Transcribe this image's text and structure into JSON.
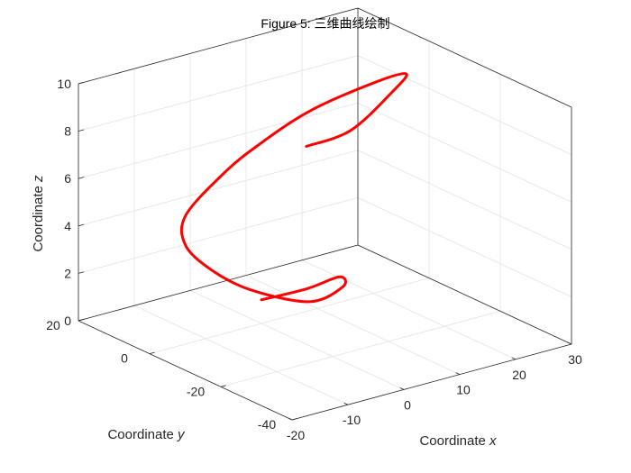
{
  "window": {
    "title": "Figure 5: 三维曲线绘制"
  },
  "chart_data": {
    "type": "line",
    "projection": "3d",
    "title": "Figure 5: 三维曲线绘制",
    "xlabel": "Coordinate x",
    "ylabel": "Coordinate y",
    "zlabel": "Coordinate z",
    "xlim": [
      -20,
      30
    ],
    "ylim": [
      -40,
      20
    ],
    "zlim": [
      0,
      10
    ],
    "xticks": [
      -20,
      -10,
      0,
      10,
      20,
      30
    ],
    "yticks": [
      -40,
      -20,
      0,
      20
    ],
    "zticks": [
      0,
      2,
      4,
      6,
      8,
      10
    ],
    "grid": true,
    "box": true,
    "line_color": "#ff0000",
    "series": [
      {
        "x": [
          0.0,
          5.0,
          7.5,
          4.9,
          -2.5,
          -13.8,
          -19.1,
          -20.0,
          -16.2,
          -6.1,
          2.1,
          11.5,
          21.9,
          25.8,
          21.0,
          11.5,
          3.2
        ],
        "y": [
          0.0,
          -5.0,
          -10.2,
          -15.2,
          -17.5,
          -18.6,
          -15.7,
          -10.0,
          -4.2,
          0.8,
          4.2,
          4.6,
          3.3,
          -0.1,
          -3.8,
          -7.0,
          -7.6
        ],
        "z": [
          1.0,
          1.5,
          2.2,
          2.3,
          2.3,
          3.6,
          4.6,
          5.3,
          5.9,
          6.7,
          7.1,
          7.9,
          8.5,
          8.9,
          8.7,
          7.9,
          7.8
        ]
      }
    ]
  }
}
